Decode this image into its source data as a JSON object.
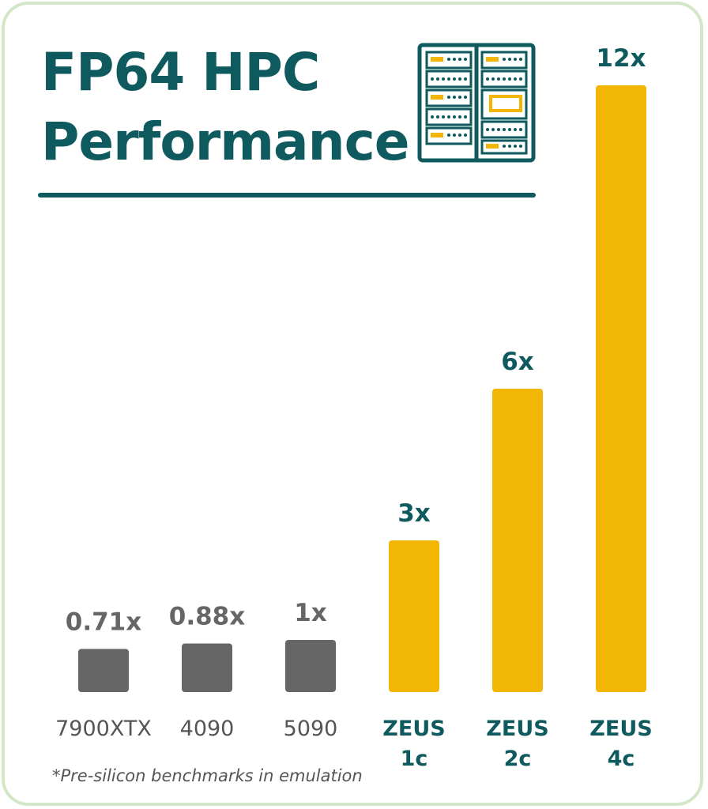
{
  "title_line1": "FP64 HPC",
  "title_line2": "Performance",
  "footnote": "*Pre-silicon benchmarks in emulation",
  "icon": "server-rack-icon",
  "colors": {
    "teal": "#0f5a5e",
    "gold": "#f2b705",
    "gray_bar": "#666666",
    "gray_label": "#555555",
    "border": "#d3e6c7"
  },
  "chart_data": {
    "type": "bar",
    "categories": [
      "7900XTX",
      "4090",
      "5090",
      "ZEUS\n1c",
      "ZEUS\n2c",
      "ZEUS\n4c"
    ],
    "values": [
      0.71,
      0.88,
      1,
      3,
      6,
      12
    ],
    "value_labels": [
      "0.71x",
      "0.88x",
      "1x",
      "3x",
      "6x",
      "12x"
    ],
    "highlight": [
      false,
      false,
      false,
      true,
      true,
      true
    ],
    "title": "FP64 HPC Performance",
    "xlabel": "",
    "ylabel": "",
    "ylim": [
      0,
      12
    ],
    "grid": false,
    "scale": "non-linear (small values exaggerated)"
  }
}
